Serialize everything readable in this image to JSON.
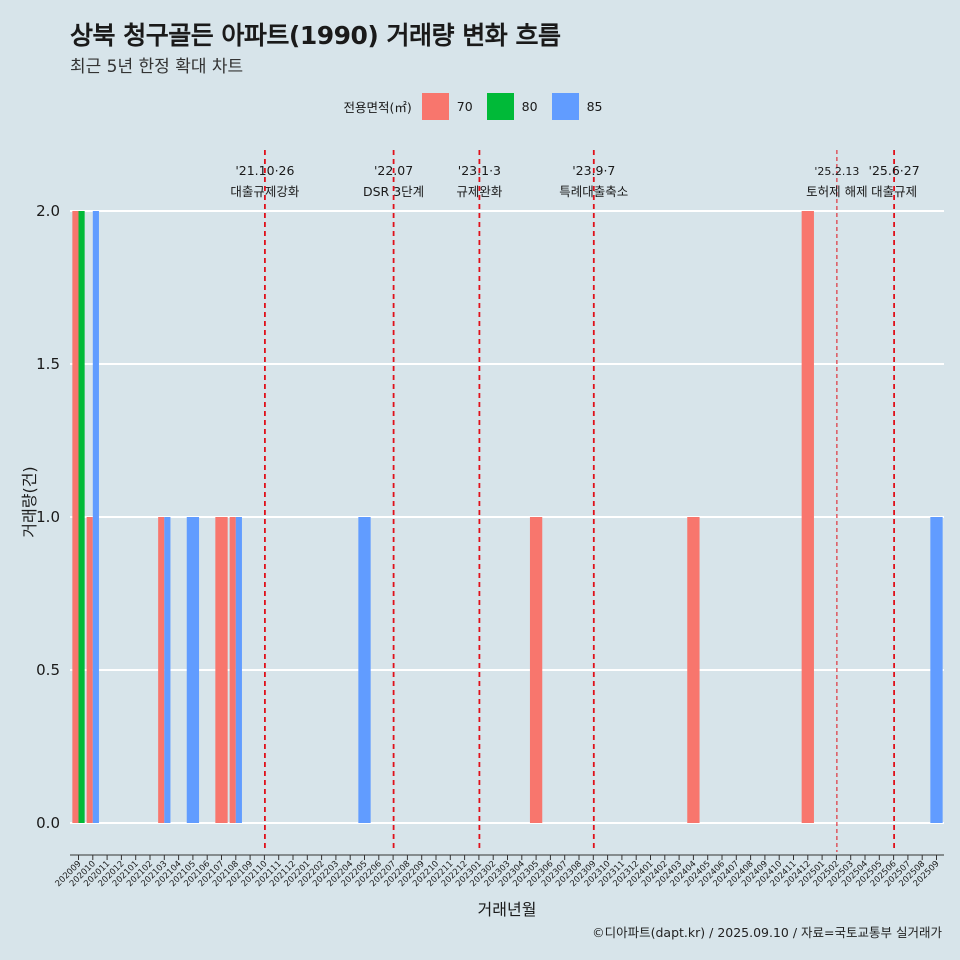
{
  "title": "상북 청구골든 아파트(1990) 거래량 변화 흐름",
  "subtitle": "최근 5년 한정 확대 차트",
  "caption": "©디아파트(dapt.kr) / 2025.09.10 / 자료=국토교통부 실거래가",
  "legend": {
    "title": "전용면적(㎡)",
    "items": [
      {
        "label": "70",
        "color": "#F8766D"
      },
      {
        "label": "80",
        "color": "#00BA38"
      },
      {
        "label": "85",
        "color": "#619CFF"
      }
    ]
  },
  "chart_data": {
    "type": "bar",
    "xlabel": "거래년월",
    "ylabel": "거래량(건)",
    "ylim": [
      0,
      2
    ],
    "yticks": [
      "0.0",
      "0.5",
      "1.0",
      "1.5",
      "2.0"
    ],
    "grid": true,
    "legend_position": "top",
    "categories": [
      "202009",
      "202010",
      "202011",
      "202012",
      "202101",
      "202102",
      "202103",
      "202104",
      "202105",
      "202106",
      "202107",
      "202108",
      "202109",
      "202110",
      "202111",
      "202112",
      "202201",
      "202202",
      "202203",
      "202204",
      "202205",
      "202206",
      "202207",
      "202208",
      "202209",
      "202210",
      "202211",
      "202212",
      "202301",
      "202302",
      "202303",
      "202304",
      "202305",
      "202306",
      "202307",
      "202308",
      "202309",
      "202310",
      "202311",
      "202312",
      "202401",
      "202402",
      "202403",
      "202404",
      "202405",
      "202406",
      "202407",
      "202408",
      "202409",
      "202410",
      "202411",
      "202412",
      "202501",
      "202502",
      "202503",
      "202504",
      "202505",
      "202506",
      "202507",
      "202508",
      "202509"
    ],
    "bars": [
      {
        "month": "202009",
        "series": "70",
        "value": 2
      },
      {
        "month": "202009",
        "series": "80",
        "value": 2
      },
      {
        "month": "202010",
        "series": "70",
        "value": 1
      },
      {
        "month": "202010",
        "series": "85",
        "value": 2
      },
      {
        "month": "202012",
        "series": "70",
        "value": 0
      },
      {
        "month": "202103",
        "series": "70",
        "value": 1
      },
      {
        "month": "202103",
        "series": "85",
        "value": 1
      },
      {
        "month": "202105",
        "series": "85",
        "value": 1
      },
      {
        "month": "202107",
        "series": "70",
        "value": 1
      },
      {
        "month": "202108",
        "series": "70",
        "value": 1
      },
      {
        "month": "202108",
        "series": "85",
        "value": 1
      },
      {
        "month": "202205",
        "series": "85",
        "value": 1
      },
      {
        "month": "202305",
        "series": "70",
        "value": 1
      },
      {
        "month": "202404",
        "series": "70",
        "value": 1
      },
      {
        "month": "202412",
        "series": "70",
        "value": 2
      },
      {
        "month": "202509",
        "series": "85",
        "value": 1
      }
    ],
    "annotations": [
      {
        "month": "202110",
        "date": "'21.10·26",
        "label": "대출규제강화",
        "style": "dashed"
      },
      {
        "month": "202207",
        "date": "'22.07",
        "label": "DSR 3단계",
        "style": "dashed"
      },
      {
        "month": "202301",
        "date": "'23.1·3",
        "label": "규제완화",
        "style": "dashed"
      },
      {
        "month": "202309",
        "date": "'23.9·7",
        "label": "특례대출축소",
        "style": "dashed"
      },
      {
        "month": "202502",
        "date": "'25.2.13",
        "label": "토허제 해제",
        "style": "thin"
      },
      {
        "month": "202506",
        "date": "'25.6·27",
        "label": "대출규제",
        "style": "dashed"
      }
    ]
  }
}
